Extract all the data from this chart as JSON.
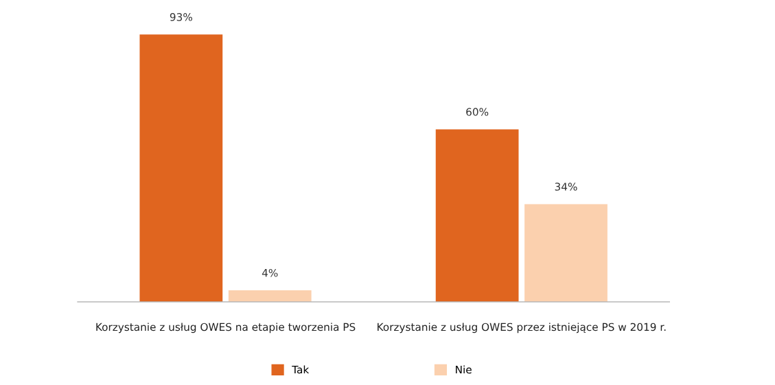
{
  "chart_data": {
    "type": "bar",
    "categories": [
      "Korzystanie z usług OWES na etapie tworzenia PS",
      "Korzystanie z usług OWES przez istniejące PS w 2019 r."
    ],
    "series": [
      {
        "name": "Tak",
        "color": "#e0651f",
        "values": [
          93,
          60
        ],
        "value_labels": [
          "93%",
          "60%"
        ]
      },
      {
        "name": "Nie",
        "color": "#fbd0ae",
        "values": [
          4,
          34
        ],
        "value_labels": [
          "4%",
          "34%"
        ]
      }
    ],
    "legend": "bottom"
  }
}
